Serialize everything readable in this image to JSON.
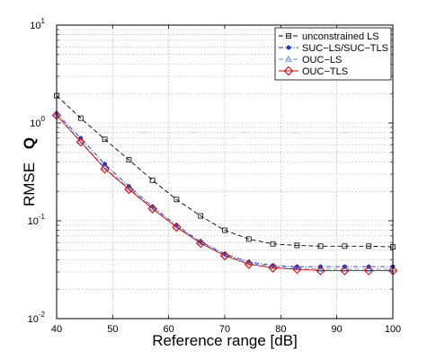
{
  "chart_data": {
    "type": "line",
    "xlabel": "Reference range [dB]",
    "ylabel_prefix": "RMSE",
    "ylabel_symbol": "Q",
    "yscale": "log",
    "xlim": [
      40,
      100
    ],
    "ylim": [
      0.01,
      10
    ],
    "xticks": [
      40,
      50,
      60,
      70,
      80,
      90,
      100
    ],
    "yticks": [
      {
        "value": 0.01,
        "base": "10",
        "exp": "-2"
      },
      {
        "value": 0.1,
        "base": "10",
        "exp": "-1"
      },
      {
        "value": 1,
        "base": "10",
        "exp": "0"
      },
      {
        "value": 10,
        "base": "10",
        "exp": "1"
      }
    ],
    "grid": true,
    "legend_position": "top-right",
    "x": [
      40,
      44.3,
      48.6,
      52.9,
      57.1,
      61.4,
      65.7,
      70,
      74.3,
      78.6,
      82.9,
      87.1,
      91.4,
      95.7,
      100
    ],
    "series": [
      {
        "name": "unconstrained LS",
        "color": "#000000",
        "dash": "dashed",
        "marker": "square",
        "values": [
          1.9,
          1.12,
          0.68,
          0.42,
          0.26,
          0.165,
          0.112,
          0.08,
          0.065,
          0.058,
          0.056,
          0.055,
          0.055,
          0.055,
          0.054
        ]
      },
      {
        "name": "SUC−LS/SUC−TLS",
        "color": "#1a33cc",
        "dash": "dashdot",
        "marker": "dot",
        "values": [
          1.25,
          0.7,
          0.38,
          0.225,
          0.14,
          0.09,
          0.061,
          0.046,
          0.038,
          0.035,
          0.034,
          0.034,
          0.034,
          0.034,
          0.034
        ]
      },
      {
        "name": "OUC−LS",
        "color": "#6a8ad6",
        "dash": "dashed",
        "marker": "triangle",
        "values": [
          1.22,
          0.65,
          0.35,
          0.215,
          0.135,
          0.087,
          0.06,
          0.045,
          0.037,
          0.034,
          0.033,
          0.032,
          0.032,
          0.032,
          0.032
        ]
      },
      {
        "name": "OUC−TLS",
        "color": "#d40000",
        "dash": "solid",
        "marker": "diamond",
        "values": [
          1.2,
          0.64,
          0.34,
          0.21,
          0.133,
          0.086,
          0.059,
          0.044,
          0.036,
          0.033,
          0.032,
          0.031,
          0.031,
          0.031,
          0.031
        ]
      }
    ]
  }
}
